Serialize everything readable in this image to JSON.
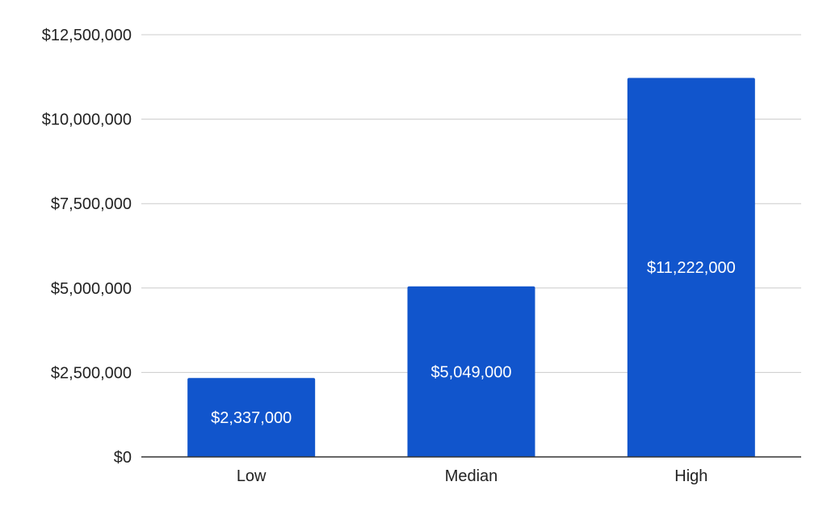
{
  "chart_data": {
    "type": "bar",
    "title": "",
    "xlabel": "",
    "ylabel": "",
    "categories": [
      "Low",
      "Median",
      "High"
    ],
    "values": [
      2337000,
      5049000,
      11222000
    ],
    "data_labels": [
      "$2,337,000",
      "$5,049,000",
      "$11,222,000"
    ],
    "ylim": [
      0,
      12500000
    ],
    "y_ticks": [
      0,
      2500000,
      5000000,
      7500000,
      10000000,
      12500000
    ],
    "y_tick_labels": [
      "$0",
      "$2,500,000",
      "$5,000,000",
      "$7,500,000",
      "$10,000,000",
      "$12,500,000"
    ],
    "grid": true,
    "legend": "none",
    "bar_color": "#1155CC",
    "grid_color": "#cccccc",
    "label_color": "#ffffff"
  }
}
